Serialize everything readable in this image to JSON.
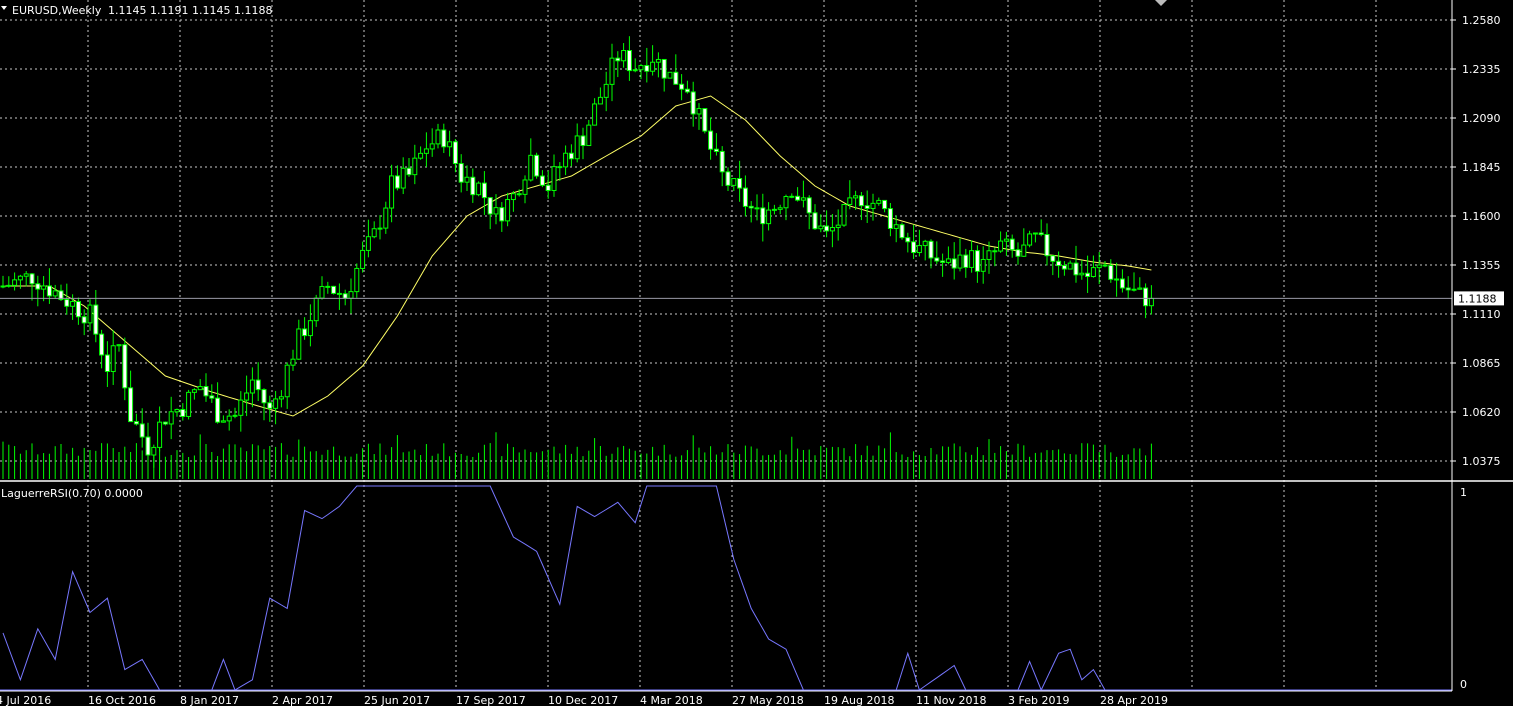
{
  "colors": {
    "background": "#000000",
    "grid": "#c8c8c8",
    "candle_up": "#00ff00",
    "candle_down_fill": "#ffffff",
    "candle_wick": "#00ff00",
    "ma": "#ffff66",
    "rsi": "#7777ff",
    "price_line": "#9a9aa6",
    "volume": "#00ff00"
  },
  "icons": {
    "collapse": "triangle-down-icon",
    "scroll_marker": "triangle-marker-icon"
  },
  "header": {
    "symbol": "EURUSD,Weekly",
    "ohlc": "1.1145 1.1191 1.1145 1.1188"
  },
  "indicator": {
    "label": "LaguerreRSI(0.70) 0.0000"
  },
  "price_tag": "1.1188",
  "chart_data": {
    "type": "candlestick",
    "price_axis_ticks": [
      "1.2580",
      "1.2335",
      "1.2090",
      "1.1845",
      "1.1600",
      "1.1355",
      "1.1110",
      "1.0865",
      "1.0620",
      "1.0375"
    ],
    "price_range": [
      1.025,
      1.264
    ],
    "rsi_axis_ticks": [
      "1",
      "0"
    ],
    "rsi_range": [
      0,
      1
    ],
    "time_labels": [
      "4 Jul 2016",
      "16 Oct 2016",
      "8 Jan 2017",
      "2 Apr 2017",
      "25 Jun 2017",
      "17 Sep 2017",
      "10 Dec 2017",
      "4 Mar 2018",
      "27 May 2018",
      "19 Aug 2018",
      "11 Nov 2018",
      "3 Feb 2019",
      "28 Apr 2019"
    ],
    "current_price": 1.1188,
    "close_anchors": [
      [
        0,
        1.125
      ],
      [
        5,
        1.13
      ],
      [
        10,
        1.12
      ],
      [
        15,
        1.11
      ],
      [
        18,
        1.085
      ],
      [
        20,
        1.095
      ],
      [
        22,
        1.06
      ],
      [
        25,
        1.045
      ],
      [
        28,
        1.06
      ],
      [
        31,
        1.065
      ],
      [
        34,
        1.075
      ],
      [
        37,
        1.062
      ],
      [
        40,
        1.06
      ],
      [
        43,
        1.078
      ],
      [
        46,
        1.062
      ],
      [
        48,
        1.075
      ],
      [
        50,
        1.092
      ],
      [
        53,
        1.11
      ],
      [
        56,
        1.125
      ],
      [
        59,
        1.12
      ],
      [
        62,
        1.14
      ],
      [
        64,
        1.15
      ],
      [
        67,
        1.175
      ],
      [
        70,
        1.18
      ],
      [
        73,
        1.195
      ],
      [
        76,
        1.2
      ],
      [
        79,
        1.18
      ],
      [
        82,
        1.175
      ],
      [
        85,
        1.16
      ],
      [
        88,
        1.17
      ],
      [
        91,
        1.19
      ],
      [
        94,
        1.175
      ],
      [
        97,
        1.19
      ],
      [
        100,
        1.2
      ],
      [
        103,
        1.22
      ],
      [
        106,
        1.24
      ],
      [
        109,
        1.235
      ],
      [
        112,
        1.24
      ],
      [
        115,
        1.23
      ],
      [
        118,
        1.225
      ],
      [
        121,
        1.2
      ],
      [
        124,
        1.18
      ],
      [
        127,
        1.17
      ],
      [
        130,
        1.16
      ],
      [
        133,
        1.165
      ],
      [
        136,
        1.175
      ],
      [
        139,
        1.16
      ],
      [
        142,
        1.15
      ],
      [
        145,
        1.16
      ],
      [
        148,
        1.17
      ],
      [
        151,
        1.165
      ],
      [
        154,
        1.155
      ],
      [
        157,
        1.145
      ],
      [
        160,
        1.14
      ],
      [
        163,
        1.135
      ],
      [
        166,
        1.14
      ],
      [
        169,
        1.135
      ],
      [
        172,
        1.145
      ],
      [
        175,
        1.14
      ],
      [
        178,
        1.148
      ],
      [
        181,
        1.14
      ],
      [
        184,
        1.135
      ],
      [
        187,
        1.13
      ],
      [
        190,
        1.135
      ],
      [
        193,
        1.125
      ],
      [
        196,
        1.12
      ],
      [
        198,
        1.119
      ]
    ],
    "ma_anchors": [
      [
        0,
        1.125
      ],
      [
        8,
        1.125
      ],
      [
        14,
        1.115
      ],
      [
        20,
        1.1
      ],
      [
        28,
        1.08
      ],
      [
        36,
        1.072
      ],
      [
        44,
        1.065
      ],
      [
        50,
        1.06
      ],
      [
        56,
        1.07
      ],
      [
        62,
        1.085
      ],
      [
        68,
        1.11
      ],
      [
        74,
        1.14
      ],
      [
        80,
        1.16
      ],
      [
        86,
        1.17
      ],
      [
        92,
        1.175
      ],
      [
        98,
        1.18
      ],
      [
        104,
        1.19
      ],
      [
        110,
        1.2
      ],
      [
        116,
        1.215
      ],
      [
        122,
        1.22
      ],
      [
        128,
        1.208
      ],
      [
        134,
        1.19
      ],
      [
        140,
        1.175
      ],
      [
        146,
        1.165
      ],
      [
        152,
        1.16
      ],
      [
        158,
        1.155
      ],
      [
        164,
        1.15
      ],
      [
        170,
        1.145
      ],
      [
        176,
        1.142
      ],
      [
        182,
        1.14
      ],
      [
        188,
        1.137
      ],
      [
        194,
        1.135
      ],
      [
        198,
        1.133
      ]
    ],
    "rsi_anchors": [
      [
        0,
        0.28
      ],
      [
        3,
        0.05
      ],
      [
        6,
        0.3
      ],
      [
        9,
        0.15
      ],
      [
        12,
        0.58
      ],
      [
        15,
        0.38
      ],
      [
        18,
        0.45
      ],
      [
        21,
        0.1
      ],
      [
        24,
        0.15
      ],
      [
        27,
        0.0
      ],
      [
        36,
        0.0
      ],
      [
        38,
        0.15
      ],
      [
        40,
        0.0
      ],
      [
        43,
        0.05
      ],
      [
        46,
        0.45
      ],
      [
        49,
        0.4
      ],
      [
        52,
        0.88
      ],
      [
        55,
        0.84
      ],
      [
        58,
        0.9
      ],
      [
        61,
        1.0
      ],
      [
        84,
        1.0
      ],
      [
        88,
        0.75
      ],
      [
        92,
        0.68
      ],
      [
        96,
        0.42
      ],
      [
        99,
        0.9
      ],
      [
        102,
        0.85
      ],
      [
        106,
        0.92
      ],
      [
        109,
        0.82
      ],
      [
        111,
        1.0
      ],
      [
        123,
        1.0
      ],
      [
        126,
        0.64
      ],
      [
        129,
        0.4
      ],
      [
        132,
        0.25
      ],
      [
        135,
        0.2
      ],
      [
        138,
        0.0
      ],
      [
        154,
        0.0
      ],
      [
        156,
        0.18
      ],
      [
        158,
        0.0
      ],
      [
        162,
        0.08
      ],
      [
        164,
        0.12
      ],
      [
        166,
        0.0
      ],
      [
        175,
        0.0
      ],
      [
        177,
        0.14
      ],
      [
        179,
        0.0
      ],
      [
        182,
        0.18
      ],
      [
        184,
        0.2
      ],
      [
        186,
        0.05
      ],
      [
        188,
        0.1
      ],
      [
        190,
        0.0
      ],
      [
        196,
        0.0
      ]
    ]
  }
}
